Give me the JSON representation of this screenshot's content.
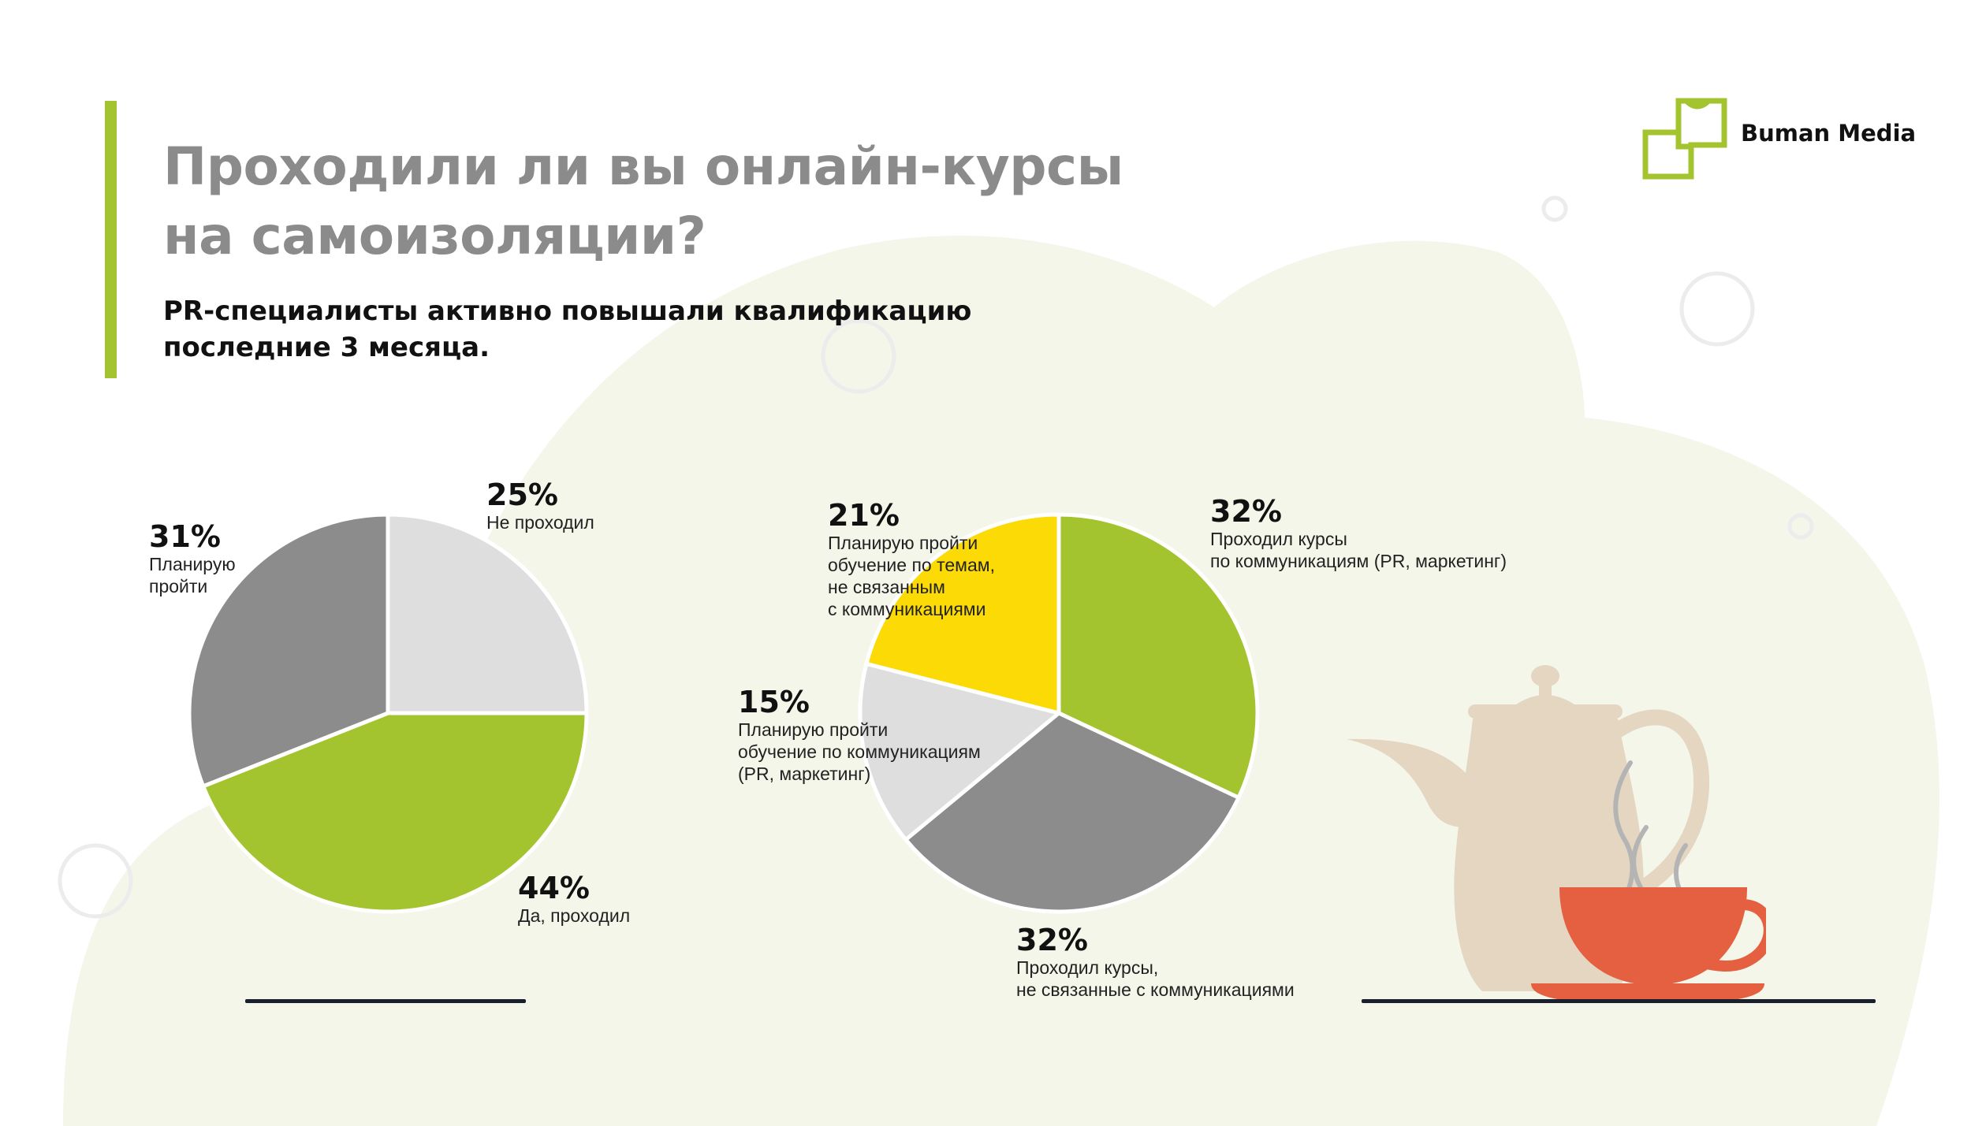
{
  "slide": {
    "title_lines": [
      "Проходили ли вы онлайн-курсы",
      "на самоизоляции?"
    ],
    "subtitle_lines": [
      "PR-специалисты активно повышали квалификацию",
      "последние 3 месяца."
    ],
    "brand": "Buman Media"
  },
  "colors": {
    "accent_green": "#a3c42e",
    "dark_gray": "#8c8c8c",
    "light_gray": "#dedede",
    "yellow": "#fbda06",
    "background_blob": "#f4f6ea",
    "cup_red": "#e55f41",
    "teapot_beige": "#e4d6c1"
  },
  "icons": [
    "logo-icon",
    "teapot-icon",
    "teacup-icon"
  ],
  "chart_data": [
    {
      "type": "pie",
      "title": "",
      "slices": [
        {
          "label": "Не проходил",
          "value": 25,
          "display": "25%",
          "color": "#dedede",
          "label_lines": [
            "Не проходил"
          ]
        },
        {
          "label": "Да, проходил",
          "value": 44,
          "display": "44%",
          "color": "#a3c42e",
          "label_lines": [
            "Да, проходил"
          ]
        },
        {
          "label": "Планирую пройти",
          "value": 31,
          "display": "31%",
          "color": "#8c8c8c",
          "label_lines": [
            "Планирую",
            "пройти"
          ]
        }
      ]
    },
    {
      "type": "pie",
      "title": "",
      "slices": [
        {
          "label": "Проходил курсы по коммуникациям (PR, маркетинг)",
          "value": 32,
          "display": "32%",
          "color": "#a3c42e",
          "label_lines": [
            "Проходил курсы",
            "по коммуникациям (PR, маркетинг)"
          ]
        },
        {
          "label": "Проходил курсы, не связанные с коммуникациями",
          "value": 32,
          "display": "32%",
          "color": "#8c8c8c",
          "label_lines": [
            "Проходил курсы,",
            "не связанные с коммуникациями"
          ]
        },
        {
          "label": "Планирую пройти обучение по коммуникациям (PR, маркетинг)",
          "value": 15,
          "display": "15%",
          "color": "#dedede",
          "label_lines": [
            "Планирую пройти",
            "обучение по коммуникациям",
            "(PR, маркетинг)"
          ]
        },
        {
          "label": "Планирую пройти обучение по темам, не связанным с коммуникациями",
          "value": 21,
          "display": "21%",
          "color": "#fbda06",
          "label_lines": [
            "Планирую пройти",
            "обучение по темам,",
            "не связанным",
            "с коммуникациями"
          ]
        }
      ]
    }
  ]
}
